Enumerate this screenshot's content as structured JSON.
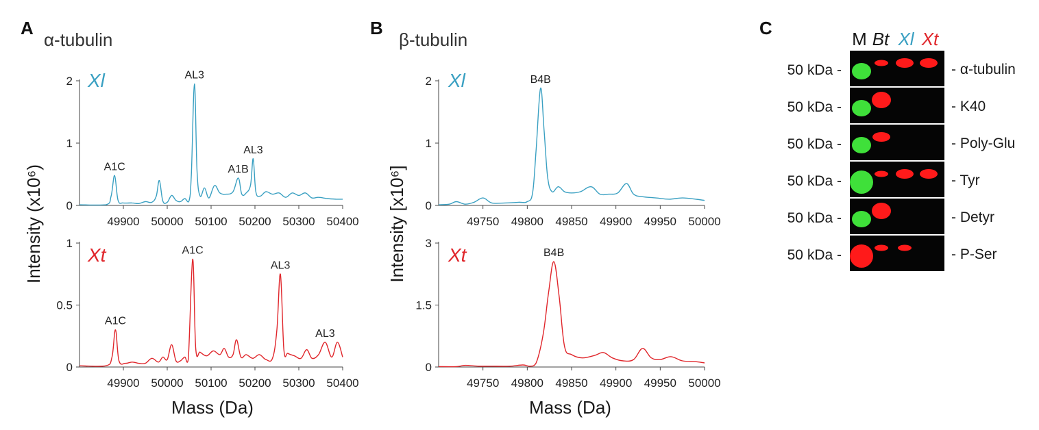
{
  "colors": {
    "xl": "#3aa0c2",
    "xt": "#e0262b",
    "axis": "#444444",
    "text": "#1a1a1a",
    "band_green": "#3fe03a",
    "band_red": "#ff1a1a",
    "blot_bg": "#050505"
  },
  "panel_a": {
    "letter": "A",
    "title": "α-tubulin",
    "ylabel": "Intensity (x10⁶)",
    "xlabel": "Mass (Da)"
  },
  "panel_b": {
    "letter": "B",
    "title": "β-tubulin",
    "ylabel": "Intensity [x10⁶]",
    "xlabel": "Mass (Da)"
  },
  "panel_c": {
    "letter": "C",
    "lane_headers": [
      {
        "text": "M",
        "italic": false,
        "color": "#1a1a1a"
      },
      {
        "text": "Bt",
        "italic": true,
        "color": "#1a1a1a"
      },
      {
        "text": "Xl",
        "italic": true,
        "color": "#3aa0c2"
      },
      {
        "text": "Xt",
        "italic": true,
        "color": "#e0262b"
      }
    ],
    "rows": [
      {
        "marker": "50 kDa -",
        "label": "- α-tubulin",
        "bands": [
          {
            "lane": 0,
            "color": "green",
            "size": "l"
          },
          {
            "lane": 1,
            "color": "red",
            "size": "s"
          },
          {
            "lane": 2,
            "color": "red",
            "size": "m"
          },
          {
            "lane": 3,
            "color": "red",
            "size": "m"
          }
        ]
      },
      {
        "marker": "50 kDa -",
        "label": "- K40",
        "bands": [
          {
            "lane": 0,
            "color": "green",
            "size": "l"
          },
          {
            "lane": 1,
            "color": "red",
            "size": "l"
          }
        ]
      },
      {
        "marker": "50 kDa -",
        "label": "- Poly-Glu",
        "bands": [
          {
            "lane": 0,
            "color": "green",
            "size": "l"
          },
          {
            "lane": 1,
            "color": "red",
            "size": "m"
          }
        ]
      },
      {
        "marker": "50 kDa -",
        "label": "- Tyr",
        "bands": [
          {
            "lane": 0,
            "color": "green",
            "size": "xl"
          },
          {
            "lane": 1,
            "color": "red",
            "size": "s"
          },
          {
            "lane": 2,
            "color": "red",
            "size": "m"
          },
          {
            "lane": 3,
            "color": "red",
            "size": "m"
          }
        ]
      },
      {
        "marker": "50 kDa -",
        "label": "- Detyr",
        "bands": [
          {
            "lane": 0,
            "color": "green",
            "size": "l"
          },
          {
            "lane": 1,
            "color": "red",
            "size": "l"
          }
        ]
      },
      {
        "marker": "50 kDa -",
        "label": "- P-Ser",
        "bands": [
          {
            "lane": 0,
            "color": "red",
            "size": "xl"
          },
          {
            "lane": 1,
            "color": "red",
            "size": "s"
          },
          {
            "lane": 2,
            "color": "red",
            "size": "s"
          }
        ]
      }
    ]
  },
  "chart_data": [
    {
      "type": "line",
      "panel": "A",
      "series_label": "Xl",
      "xlim": [
        49800,
        50400
      ],
      "ylim": [
        0,
        2
      ],
      "xticks": [
        49900,
        50000,
        50100,
        50200,
        50300,
        50400
      ],
      "yticks": [
        0,
        1,
        2
      ],
      "ytick_labels": [
        "0",
        "1",
        "2"
      ],
      "show_xtick_labels": true,
      "color_key": "xl",
      "baseline": 0.03,
      "x": [
        49800,
        49860,
        49872,
        49880,
        49888,
        49900,
        49920,
        49935,
        49950,
        49965,
        49975,
        49982,
        49990,
        50000,
        50010,
        50020,
        50030,
        50040,
        50050,
        50055,
        50062,
        50068,
        50075,
        50085,
        50095,
        50108,
        50120,
        50135,
        50150,
        50162,
        50170,
        50180,
        50190,
        50196,
        50202,
        50212,
        50225,
        50240,
        50255,
        50270,
        50285,
        50300,
        50315,
        50330,
        50345,
        50365,
        50385,
        50400
      ],
      "y": [
        0.01,
        0.01,
        0.15,
        0.48,
        0.08,
        0.04,
        0.04,
        0.03,
        0.06,
        0.05,
        0.15,
        0.4,
        0.07,
        0.05,
        0.16,
        0.08,
        0.06,
        0.11,
        0.08,
        0.5,
        1.95,
        0.55,
        0.15,
        0.28,
        0.12,
        0.32,
        0.2,
        0.18,
        0.22,
        0.44,
        0.18,
        0.2,
        0.33,
        0.75,
        0.22,
        0.15,
        0.22,
        0.18,
        0.2,
        0.13,
        0.2,
        0.16,
        0.2,
        0.12,
        0.13,
        0.11,
        0.1,
        0.1
      ],
      "annotations": [
        {
          "text": "A1C",
          "x": 49880,
          "y": 0.48
        },
        {
          "text": "AL3",
          "x": 50062,
          "y": 1.95
        },
        {
          "text": "A1B",
          "x": 50162,
          "y": 0.44
        },
        {
          "text": "AL3",
          "x": 50196,
          "y": 0.75
        }
      ]
    },
    {
      "type": "line",
      "panel": "A",
      "series_label": "Xt",
      "xlim": [
        49800,
        50400
      ],
      "ylim": [
        0,
        1
      ],
      "xticks": [
        49900,
        50000,
        50100,
        50200,
        50300,
        50400
      ],
      "yticks": [
        0,
        0.5,
        1
      ],
      "ytick_labels": [
        "0",
        "0.5",
        "1"
      ],
      "show_xtick_labels": true,
      "color_key": "xt",
      "baseline": 0.01,
      "x": [
        49800,
        49860,
        49874,
        49882,
        49890,
        49905,
        49920,
        49935,
        49950,
        49965,
        49980,
        49990,
        50000,
        50010,
        50020,
        50030,
        50040,
        50048,
        50058,
        50065,
        50075,
        50090,
        50105,
        50120,
        50130,
        50140,
        50150,
        50158,
        50168,
        50180,
        50195,
        50210,
        50225,
        50240,
        50250,
        50258,
        50266,
        50275,
        50290,
        50305,
        50318,
        50330,
        50345,
        50360,
        50375,
        50388,
        50400
      ],
      "y": [
        0.01,
        0.01,
        0.08,
        0.3,
        0.05,
        0.03,
        0.04,
        0.03,
        0.03,
        0.07,
        0.04,
        0.08,
        0.06,
        0.18,
        0.05,
        0.05,
        0.08,
        0.06,
        0.87,
        0.15,
        0.12,
        0.09,
        0.13,
        0.1,
        0.15,
        0.08,
        0.1,
        0.22,
        0.08,
        0.1,
        0.07,
        0.1,
        0.06,
        0.07,
        0.3,
        0.75,
        0.14,
        0.11,
        0.09,
        0.07,
        0.14,
        0.07,
        0.1,
        0.2,
        0.08,
        0.2,
        0.08
      ],
      "annotations": [
        {
          "text": "A1C",
          "x": 49882,
          "y": 0.3
        },
        {
          "text": "A1C",
          "x": 50058,
          "y": 0.87
        },
        {
          "text": "AL3",
          "x": 50258,
          "y": 0.75
        },
        {
          "text": "AL3",
          "x": 50360,
          "y": 0.2
        }
      ]
    },
    {
      "type": "line",
      "panel": "B",
      "series_label": "Xl",
      "xlim": [
        49700,
        50000
      ],
      "ylim": [
        0,
        2
      ],
      "xticks": [
        49750,
        49800,
        49850,
        49900,
        49950,
        50000
      ],
      "yticks": [
        0,
        1,
        2
      ],
      "ytick_labels": [
        "0",
        "1",
        "2"
      ],
      "show_xtick_labels": true,
      "color_key": "xl",
      "baseline": 0.02,
      "x": [
        49700,
        49712,
        49720,
        49730,
        49740,
        49750,
        49760,
        49775,
        49790,
        49800,
        49806,
        49810,
        49815,
        49819,
        49823,
        49828,
        49835,
        49842,
        49850,
        49860,
        49872,
        49882,
        49892,
        49902,
        49912,
        49920,
        49930,
        49945,
        49960,
        49975,
        49990,
        50000
      ],
      "y": [
        0.01,
        0.02,
        0.06,
        0.02,
        0.05,
        0.12,
        0.04,
        0.04,
        0.05,
        0.06,
        0.2,
        0.9,
        1.88,
        1.2,
        0.45,
        0.22,
        0.3,
        0.22,
        0.2,
        0.22,
        0.3,
        0.18,
        0.18,
        0.2,
        0.35,
        0.18,
        0.14,
        0.12,
        0.1,
        0.12,
        0.1,
        0.08
      ],
      "annotations": [
        {
          "text": "B4B",
          "x": 49815,
          "y": 1.88
        }
      ]
    },
    {
      "type": "line",
      "panel": "B",
      "series_label": "Xt",
      "xlim": [
        49700,
        50000
      ],
      "ylim": [
        0,
        3
      ],
      "xticks": [
        49750,
        49800,
        49850,
        49900,
        49950,
        50000
      ],
      "yticks": [
        0,
        1.5,
        3
      ],
      "ytick_labels": [
        "0",
        "1.5",
        "3"
      ],
      "show_xtick_labels": true,
      "color_key": "xt",
      "baseline": 0.01,
      "x": [
        49700,
        49720,
        49730,
        49745,
        49760,
        49780,
        49795,
        49803,
        49810,
        49818,
        49824,
        49830,
        49836,
        49842,
        49850,
        49862,
        49876,
        49886,
        49896,
        49908,
        49920,
        49930,
        49940,
        49950,
        49962,
        49975,
        49990,
        50000
      ],
      "y": [
        0.01,
        0.01,
        0.04,
        0.02,
        0.02,
        0.02,
        0.05,
        0.02,
        0.1,
        0.8,
        1.8,
        2.55,
        1.7,
        0.5,
        0.3,
        0.22,
        0.28,
        0.35,
        0.22,
        0.15,
        0.18,
        0.45,
        0.22,
        0.18,
        0.25,
        0.15,
        0.13,
        0.1
      ],
      "annotations": [
        {
          "text": "B4B",
          "x": 49830,
          "y": 2.55
        }
      ]
    }
  ]
}
